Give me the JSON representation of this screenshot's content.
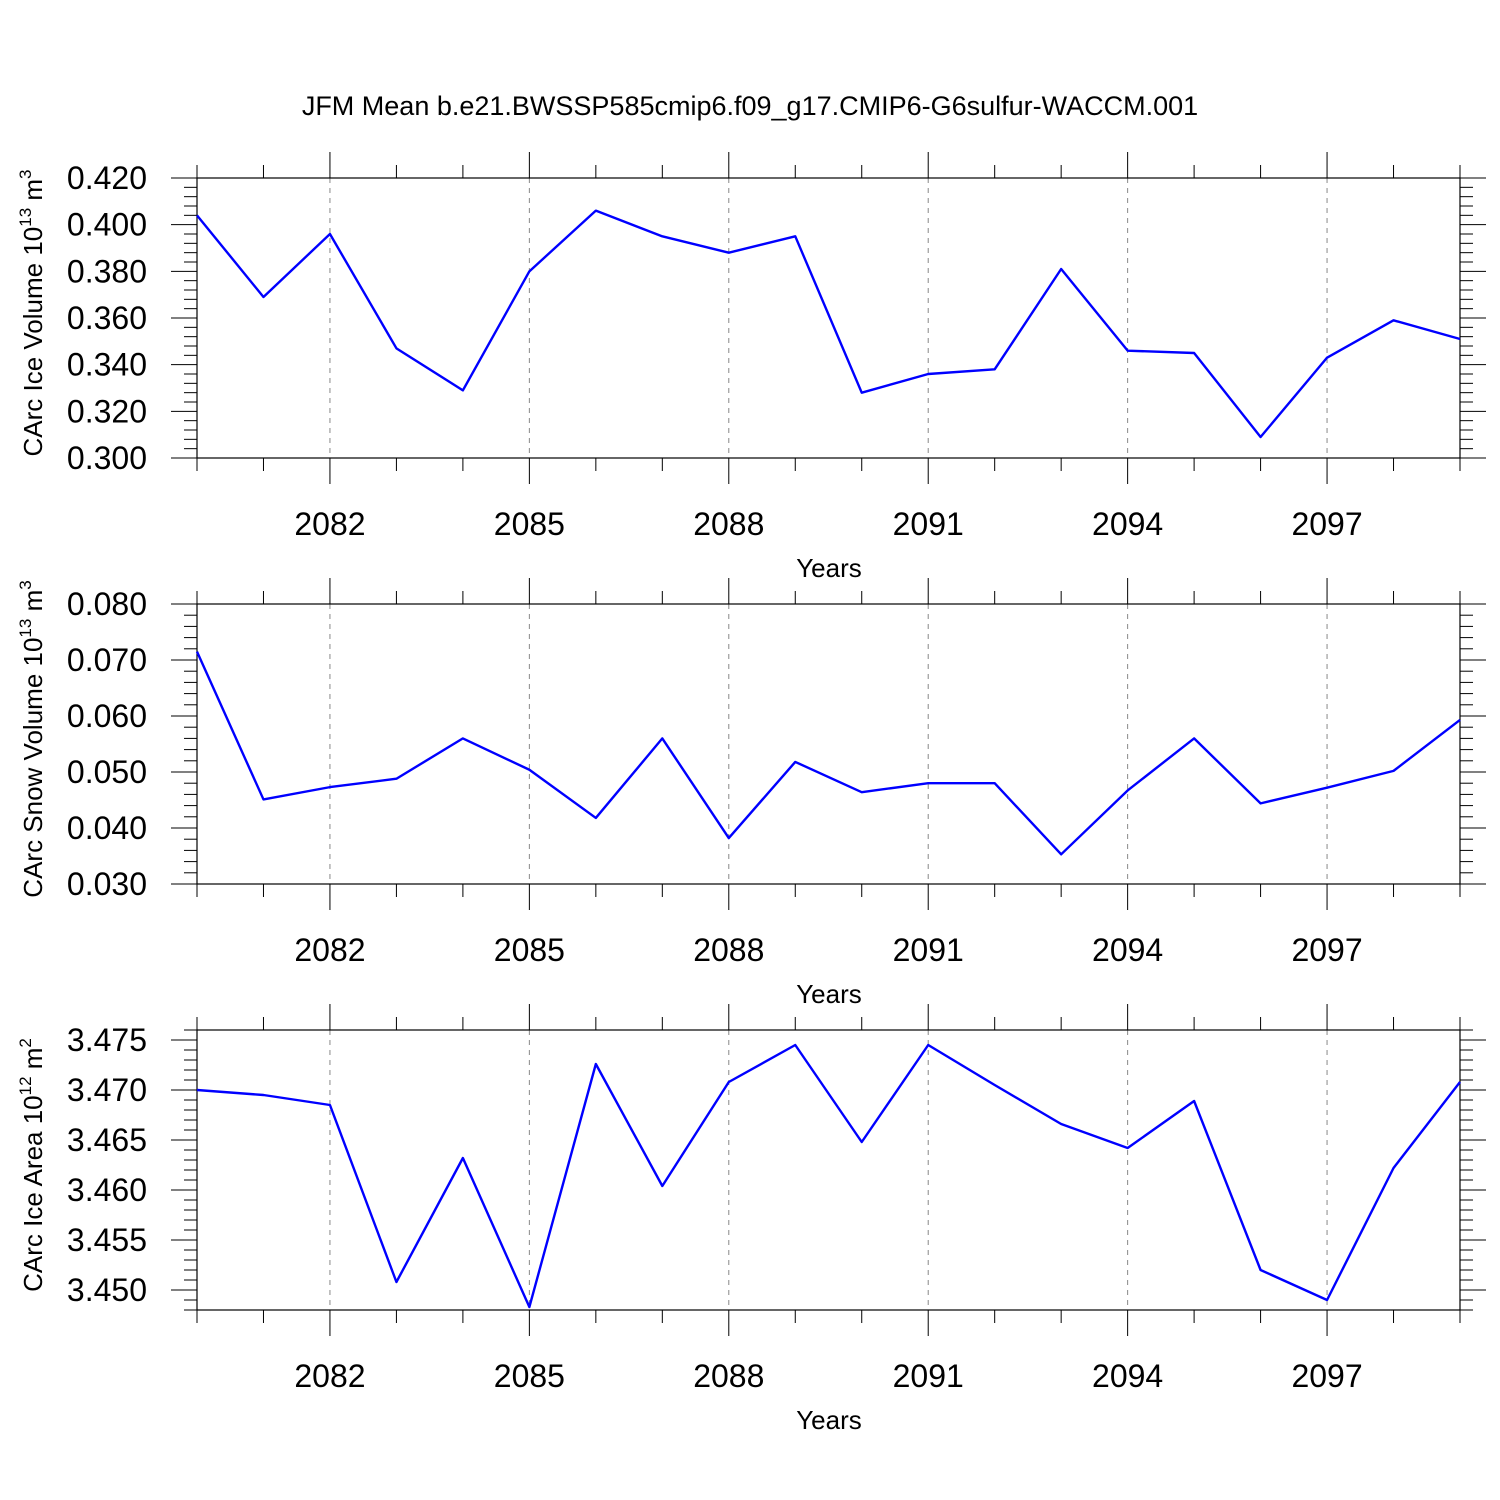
{
  "title": "JFM Mean b.e21.BWSSP585cmip6.f09_g17.CMIP6-G6sulfur-WACCM.001",
  "colors": {
    "series": "#0000ff",
    "grid": "#888888",
    "axis": "#000000"
  },
  "chart_data": [
    {
      "type": "line",
      "ylabel": {
        "text": "CArc Ice Volume 10",
        "exp": "13",
        "unit": " m",
        "unit_exp": "3"
      },
      "xlabel": "Years",
      "xlim": [
        2080,
        2099
      ],
      "ylim": [
        0.3,
        0.42
      ],
      "x_ticks": [
        "2082",
        "2085",
        "2088",
        "2091",
        "2094",
        "2097"
      ],
      "y_ticks": [
        "0.300",
        "0.320",
        "0.340",
        "0.360",
        "0.380",
        "0.400",
        "0.420"
      ],
      "grid": "dashed vertical at labeled years",
      "x": [
        2080,
        2081,
        2082,
        2083,
        2084,
        2085,
        2086,
        2087,
        2088,
        2089,
        2090,
        2091,
        2092,
        2093,
        2094,
        2095,
        2096,
        2097,
        2098,
        2099
      ],
      "series": [
        {
          "values": [
            0.404,
            0.369,
            0.396,
            0.347,
            0.329,
            0.38,
            0.406,
            0.395,
            0.388,
            0.395,
            0.328,
            0.336,
            0.338,
            0.381,
            0.346,
            0.345,
            0.309,
            0.343,
            0.359,
            0.351
          ]
        }
      ]
    },
    {
      "type": "line",
      "ylabel": {
        "text": "CArc Snow Volume 10",
        "exp": "13",
        "unit": " m",
        "unit_exp": "3"
      },
      "xlabel": "Years",
      "xlim": [
        2080,
        2099
      ],
      "ylim": [
        0.03,
        0.08
      ],
      "x_ticks": [
        "2082",
        "2085",
        "2088",
        "2091",
        "2094",
        "2097"
      ],
      "y_ticks": [
        "0.030",
        "0.040",
        "0.050",
        "0.060",
        "0.070",
        "0.080"
      ],
      "grid": "dashed vertical at labeled years",
      "x": [
        2080,
        2081,
        2082,
        2083,
        2084,
        2085,
        2086,
        2087,
        2088,
        2089,
        2090,
        2091,
        2092,
        2093,
        2094,
        2095,
        2096,
        2097,
        2098,
        2099
      ],
      "series": [
        {
          "values": [
            0.0715,
            0.0451,
            0.0473,
            0.0488,
            0.056,
            0.0504,
            0.0418,
            0.056,
            0.0382,
            0.0518,
            0.0464,
            0.048,
            0.048,
            0.0353,
            0.0467,
            0.056,
            0.0444,
            0.0472,
            0.0502,
            0.0593
          ]
        }
      ]
    },
    {
      "type": "line",
      "ylabel": {
        "text": "CArc Ice Area 10",
        "exp": "12",
        "unit": " m",
        "unit_exp": "2"
      },
      "xlabel": "Years",
      "xlim": [
        2080,
        2099
      ],
      "ylim": [
        3.448,
        3.476
      ],
      "x_ticks": [
        "2082",
        "2085",
        "2088",
        "2091",
        "2094",
        "2097"
      ],
      "y_ticks": [
        "3.450",
        "3.455",
        "3.460",
        "3.465",
        "3.470",
        "3.475"
      ],
      "grid": "dashed vertical at labeled years",
      "x": [
        2080,
        2081,
        2082,
        2083,
        2084,
        2085,
        2086,
        2087,
        2088,
        2089,
        2090,
        2091,
        2092,
        2093,
        2094,
        2095,
        2096,
        2097,
        2098,
        2099
      ],
      "series": [
        {
          "values": [
            3.47,
            3.4695,
            3.4685,
            3.4508,
            3.4632,
            3.4483,
            3.4726,
            3.4604,
            3.4708,
            3.4745,
            3.4648,
            3.4745,
            3.4705,
            3.4666,
            3.4642,
            3.4689,
            3.452,
            3.449,
            3.4622,
            3.4708
          ]
        }
      ]
    }
  ]
}
